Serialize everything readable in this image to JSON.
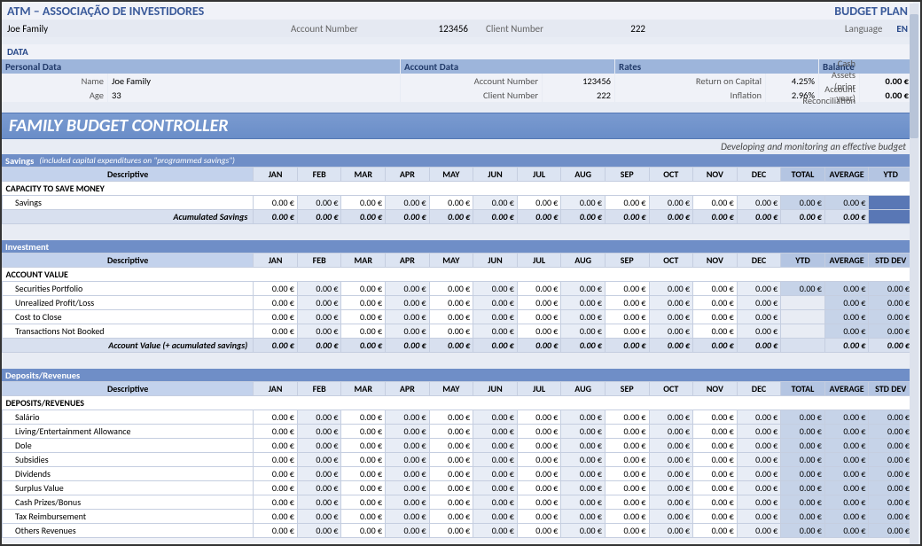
{
  "header": {
    "org": "ATM – ASSOCIAÇÃO DE INVESTIDORES",
    "plan": "BUDGET PLAN",
    "client_name": "Joe Family",
    "acct_lbl": "Account Number",
    "acct_val": "123456",
    "client_lbl": "Client Number",
    "client_val": "222",
    "lang_lbl": "Language",
    "lang_val": "EN",
    "data_lbl": "DATA"
  },
  "panels": {
    "personal": {
      "title": "Personal Data",
      "name_lbl": "Name",
      "name_val": "Joe Family",
      "age_lbl": "Age",
      "age_val": "33"
    },
    "account": {
      "title": "Account Data",
      "acct_lbl": "Account Number",
      "acct_val": "123456",
      "client_lbl": "Client Number",
      "client_val": "222"
    },
    "rates": {
      "title": "Rates",
      "roc_lbl": "Return on Capital",
      "roc_val": "4.25%",
      "inf_lbl": "Inflation",
      "inf_val": "2.96%"
    },
    "balance": {
      "title": "Balance",
      "cash_lbl": "Cash Assets (prior year)",
      "cash_val": "0.00 €",
      "recon_lbl": "Account Reconciliation",
      "recon_val": "0.00 €"
    }
  },
  "controller": {
    "title": "FAMILY BUDGET CONTROLLER",
    "subtitle": "Developing and monitoring an effective budget"
  },
  "months": [
    "JAN",
    "FEB",
    "MAR",
    "APR",
    "MAY",
    "JUN",
    "JUL",
    "AUG",
    "SEP",
    "OCT",
    "NOV",
    "DEC"
  ],
  "zero": "0.00 €",
  "savings": {
    "block": "Savings",
    "note": "(included capital expenditures on \"programmed savings\")",
    "desc": "Descriptive",
    "aggs": [
      "TOTAL",
      "AVERAGE",
      "YTD"
    ],
    "subhdr": "CAPACITY TO SAVE MONEY",
    "row": "Savings",
    "total": "Acumulated Savings"
  },
  "investment": {
    "block": "Investment",
    "desc": "Descriptive",
    "aggs": [
      "YTD",
      "AVERAGE",
      "STD DEV"
    ],
    "subhdr": "ACCOUNT VALUE",
    "rows": [
      "Securities Portfolio",
      "Unrealized Profit/Loss",
      "Cost to Close",
      "Transactions Not Booked"
    ],
    "total": "Account Value (+ acumulated savings)"
  },
  "deposits": {
    "block": "Deposits/Revenues",
    "desc": "Descriptive",
    "aggs": [
      "TOTAL",
      "AVERAGE",
      "STD DEV"
    ],
    "subhdr": "DEPOSITS/REVENUES",
    "rows": [
      "Salário",
      "Living/Entertainment Allowance",
      "Dole",
      "Subsidies",
      "Dividends",
      "Surplus Value",
      "Cash Prizes/Bonus",
      "Tax Reimbursement",
      "Others Revenues"
    ]
  },
  "widths": {
    "personal": 450,
    "account": 242,
    "rates": 230,
    "balance": 106
  },
  "colors": {
    "hdr_bg": "#9db5db",
    "section_bg": "#6a8dc8",
    "block_bg": "#6f8ec7",
    "th_bg": "#dce4f2",
    "alt_bg": "#e8edf6",
    "agg_bg": "#c6d3e8"
  }
}
